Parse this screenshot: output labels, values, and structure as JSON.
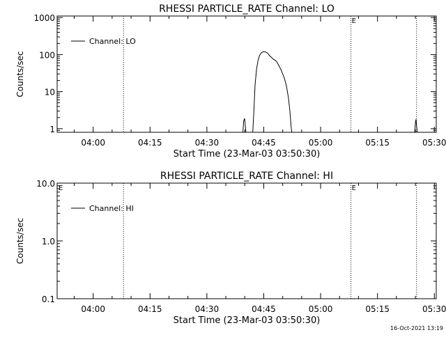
{
  "footer_timestamp": "16-Oct-2021 13:19",
  "chart_data": [
    {
      "type": "line",
      "title": "RHESSI PARTICLE_RATE Channel: LO",
      "xlabel": "Start Time (23-Mar-03 03:50:30)",
      "ylabel": "Counts/sec",
      "x_unit": "minutes since 03:50:30",
      "xlim": [
        0,
        100
      ],
      "x_ticks": [
        {
          "x": 9.5,
          "label": "04:00"
        },
        {
          "x": 24.5,
          "label": "04:15"
        },
        {
          "x": 39.5,
          "label": "04:30"
        },
        {
          "x": 54.5,
          "label": "04:45"
        },
        {
          "x": 69.5,
          "label": "05:00"
        },
        {
          "x": 84.5,
          "label": "05:15"
        },
        {
          "x": 99.5,
          "label": "05:30"
        }
      ],
      "y_scale": "log",
      "ylim": [
        0.8,
        1100
      ],
      "y_ticks": [
        {
          "y": 1,
          "label": "1"
        },
        {
          "y": 10,
          "label": "10"
        },
        {
          "y": 100,
          "label": "100"
        },
        {
          "y": 1000,
          "label": "1000"
        }
      ],
      "vertical_lines": [
        17.5,
        77.5,
        94.8
      ],
      "markers": [
        {
          "x": 77.5,
          "label": "E"
        }
      ],
      "legend": {
        "position": "top-left",
        "entries": [
          "Channel: LO"
        ]
      },
      "series": [
        {
          "name": "Channel: LO",
          "segments": [
            [
              [
                49.0,
                0.8
              ],
              [
                49.2,
                1.6
              ],
              [
                49.45,
                1.9
              ],
              [
                49.7,
                1.0
              ],
              [
                49.8,
                0.8
              ]
            ],
            [
              [
                51.6,
                0.8
              ],
              [
                51.9,
                3
              ],
              [
                52.2,
                15
              ],
              [
                52.6,
                40
              ],
              [
                53.0,
                70
              ],
              [
                53.4,
                95
              ],
              [
                53.8,
                110
              ],
              [
                54.2,
                118
              ],
              [
                54.6,
                120
              ],
              [
                55.0,
                118
              ],
              [
                55.5,
                110
              ],
              [
                56.0,
                95
              ],
              [
                56.5,
                85
              ],
              [
                57.0,
                75
              ],
              [
                57.6,
                70
              ],
              [
                58.0,
                62
              ],
              [
                58.5,
                50
              ],
              [
                59.0,
                40
              ],
              [
                59.5,
                30
              ],
              [
                60.0,
                22
              ],
              [
                60.5,
                14
              ],
              [
                61.0,
                7
              ],
              [
                61.4,
                3
              ],
              [
                61.7,
                1.2
              ],
              [
                61.9,
                0.8
              ]
            ],
            [
              [
                94.3,
                0.8
              ],
              [
                94.5,
                1.4
              ],
              [
                94.65,
                1.8
              ],
              [
                94.8,
                1.2
              ],
              [
                95.0,
                0.8
              ]
            ]
          ]
        }
      ]
    },
    {
      "type": "line",
      "title": "RHESSI PARTICLE_RATE Channel: HI",
      "xlabel": "Start Time (23-Mar-03 03:50:30)",
      "ylabel": "Counts/sec",
      "x_unit": "minutes since 03:50:30",
      "xlim": [
        0,
        100
      ],
      "x_ticks": [
        {
          "x": 9.5,
          "label": "04:00"
        },
        {
          "x": 24.5,
          "label": "04:15"
        },
        {
          "x": 39.5,
          "label": "04:30"
        },
        {
          "x": 54.5,
          "label": "04:45"
        },
        {
          "x": 69.5,
          "label": "05:00"
        },
        {
          "x": 84.5,
          "label": "05:15"
        },
        {
          "x": 99.5,
          "label": "05:30"
        }
      ],
      "y_scale": "log",
      "ylim": [
        0.1,
        10
      ],
      "y_ticks": [
        {
          "y": 0.1,
          "label": "0.1"
        },
        {
          "y": 1,
          "label": "1.0"
        },
        {
          "y": 10,
          "label": "10.0"
        }
      ],
      "vertical_lines": [
        17.5,
        77.5,
        94.8
      ],
      "markers": [
        {
          "x": 0,
          "label": "E"
        },
        {
          "x": 77.5,
          "label": "E"
        }
      ],
      "legend": {
        "position": "top-left",
        "entries": [
          "Channel: HI"
        ]
      },
      "series": [
        {
          "name": "Channel: HI",
          "segments": []
        }
      ]
    }
  ]
}
